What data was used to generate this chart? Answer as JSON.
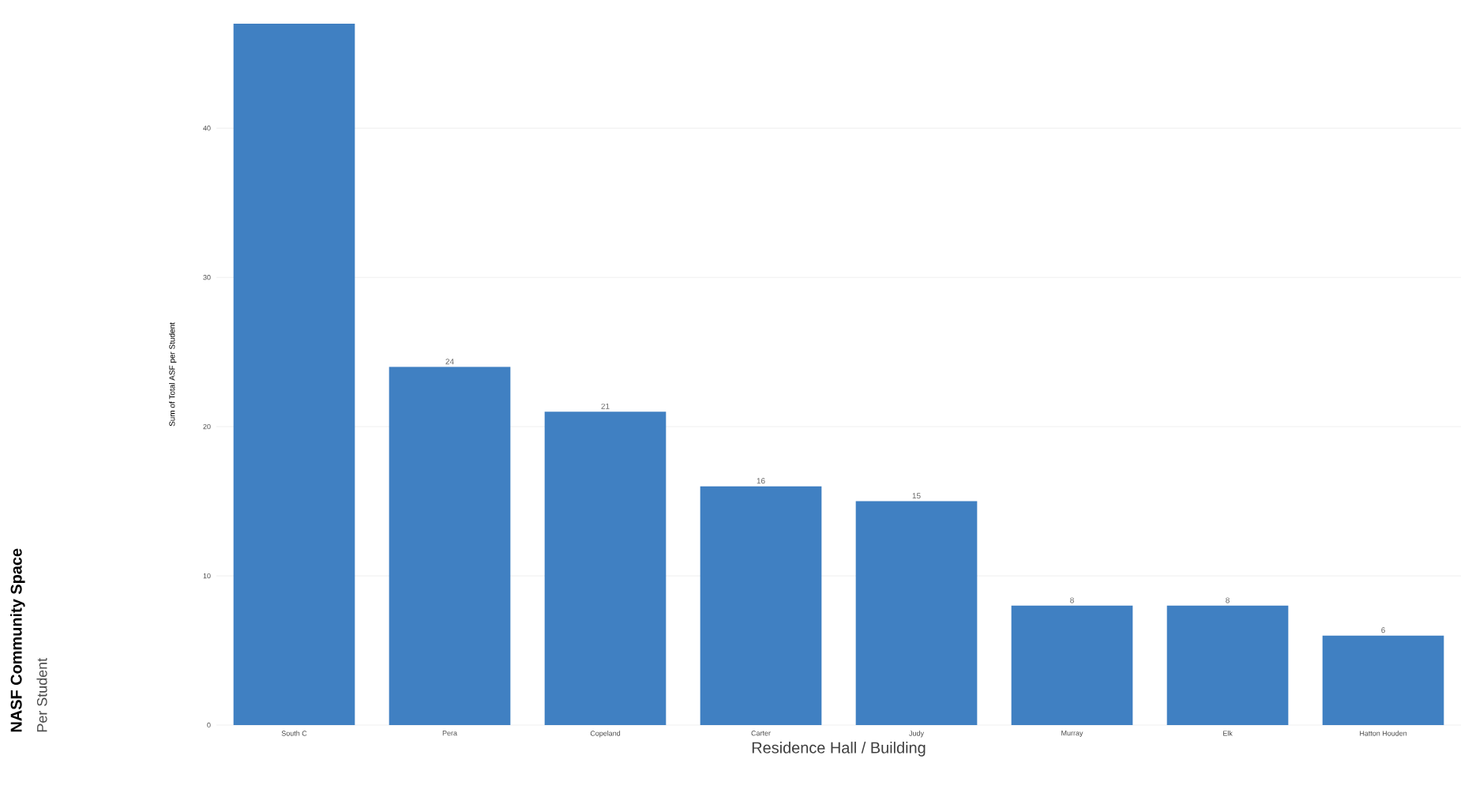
{
  "chart_data": {
    "type": "bar",
    "title": "NASF Community Space",
    "subtitle": "Per Student",
    "xlabel": "Residence Hall / Building",
    "ylabel": "Sum of Total ASF per Student",
    "categories": [
      "South C",
      "Pera",
      "Copeland",
      "Carter",
      "Judy",
      "Murray",
      "Elk",
      "Hatton Houden"
    ],
    "values": [
      47,
      24,
      21,
      16,
      15,
      8,
      8,
      6
    ],
    "value_labels": [
      null,
      "24",
      "21",
      "16",
      "15",
      "8",
      "8",
      "6"
    ],
    "color": "#4080c2",
    "ylim": [
      0,
      47
    ],
    "yticks": [
      0,
      10,
      20,
      30,
      40
    ],
    "grid": "y"
  }
}
